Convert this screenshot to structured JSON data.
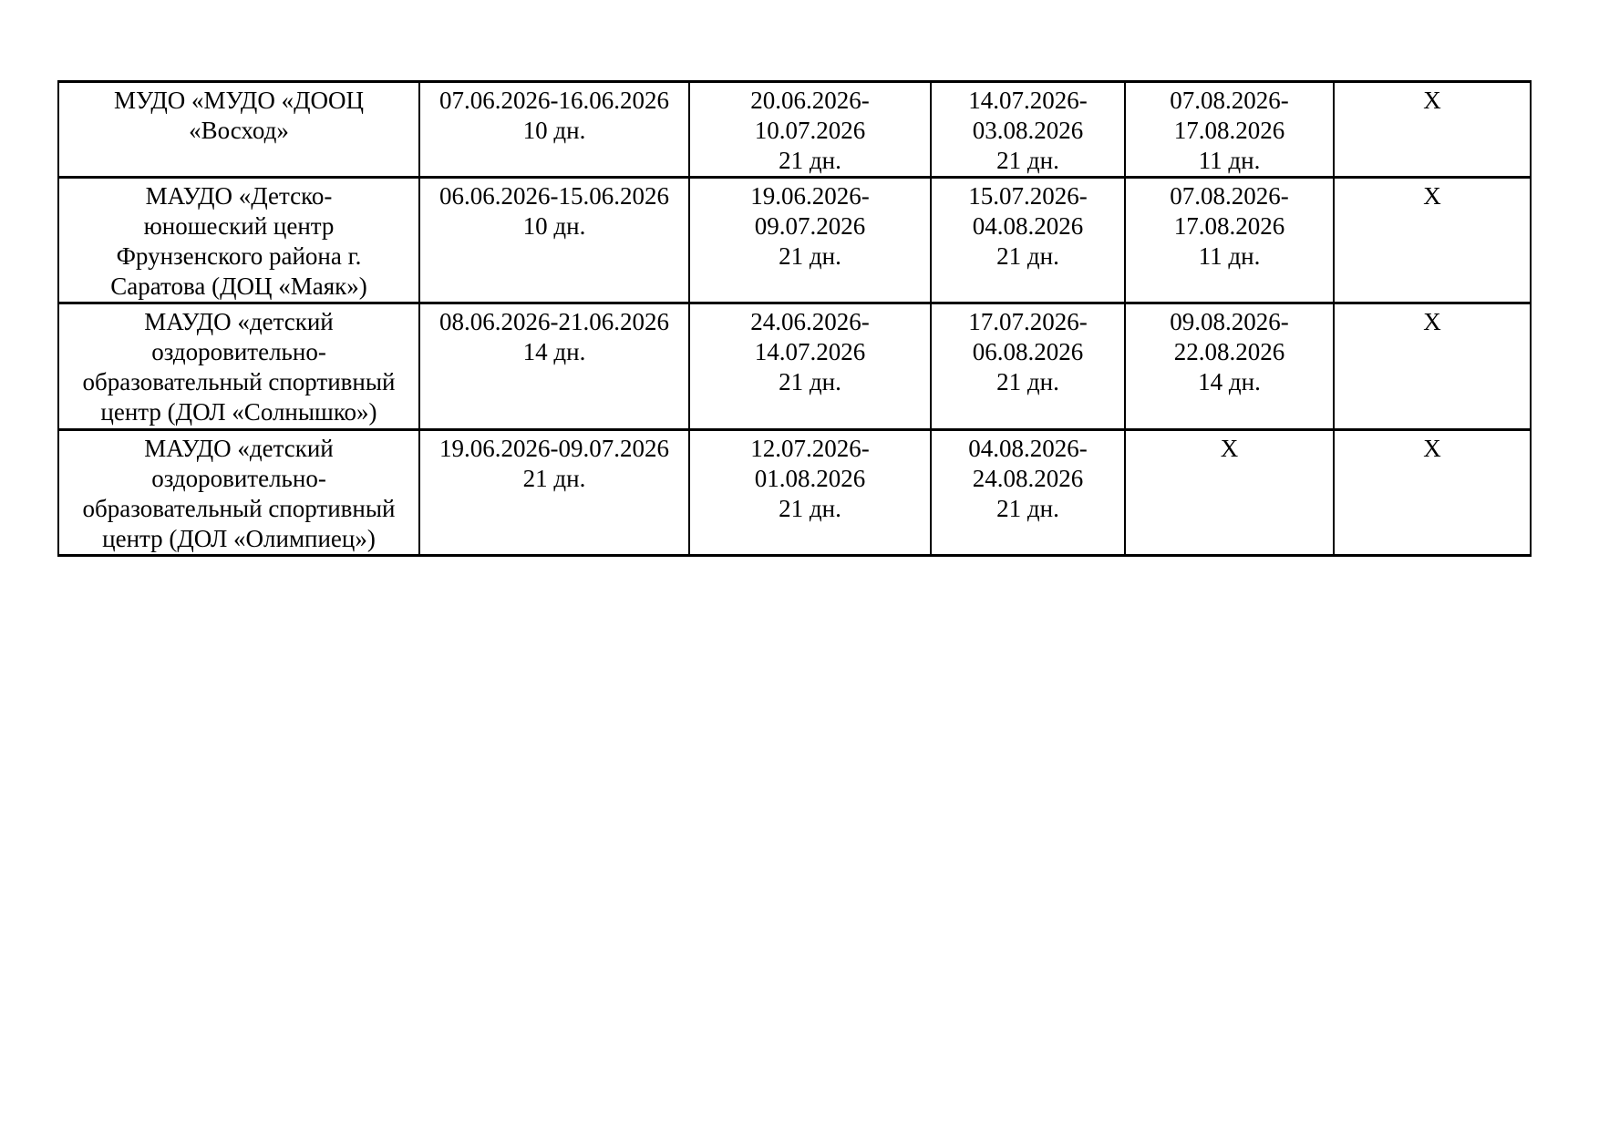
{
  "document": {
    "background": "#ffffff",
    "text_color": "#000000",
    "border_color": "#000000"
  },
  "table": {
    "rows": [
      {
        "cells": [
          "МУДО «МУДО «ДООЦ\n«Восход»",
          "07.06.2026-16.06.2026\n10 дн.",
          "20.06.2026-\n10.07.2026\n21 дн.",
          "14.07.2026-\n03.08.2026\n21 дн.",
          "07.08.2026-\n17.08.2026\n11 дн.",
          "Х"
        ]
      },
      {
        "cells": [
          "МАУДО «Детско-\nюношеский центр\nФрунзенского района г.\nСаратова (ДОЦ «Маяк»)",
          "06.06.2026-15.06.2026\n10 дн.",
          "19.06.2026-\n09.07.2026\n21 дн.",
          "15.07.2026-\n04.08.2026\n21 дн.",
          "07.08.2026-\n17.08.2026\n11 дн.",
          "Х"
        ]
      },
      {
        "cells": [
          "МАУДО «детский\nоздоровительно-\nобразовательный спортивный\nцентр (ДОЛ «Солнышко»)",
          "08.06.2026-21.06.2026\n14 дн.",
          "24.06.2026-\n14.07.2026\n21 дн.",
          "17.07.2026-\n06.08.2026\n21 дн.",
          "09.08.2026-\n22.08.2026\n14 дн.",
          "Х"
        ]
      },
      {
        "cells": [
          "МАУДО «детский\nоздоровительно-\nобразовательный спортивный\nцентр (ДОЛ «Олимпиец»)",
          "19.06.2026-09.07.2026\n21 дн.",
          "12.07.2026-\n01.08.2026\n21 дн.",
          "04.08.2026-\n24.08.2026\n21 дн.",
          "Х",
          "Х"
        ]
      }
    ]
  }
}
